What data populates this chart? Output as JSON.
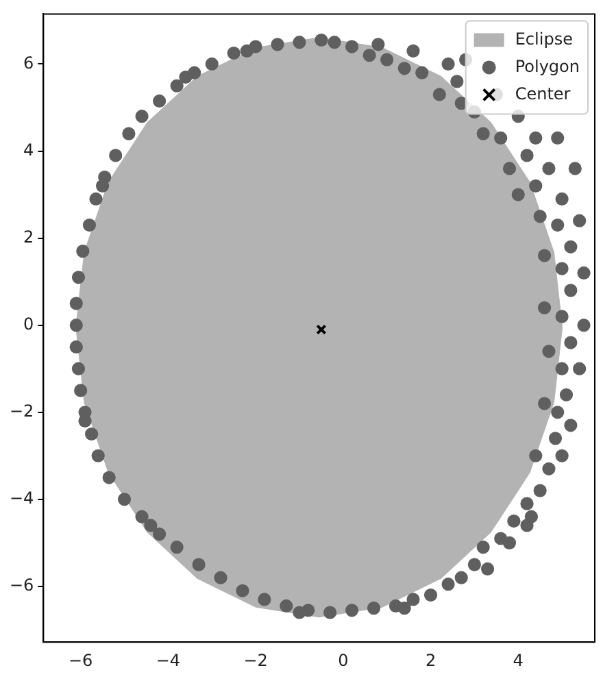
{
  "chart_data": {
    "type": "scatter",
    "xlim": [
      -6.85,
      5.75
    ],
    "ylim": [
      -7.28,
      7.15
    ],
    "xticks": [
      -6,
      -4,
      -2,
      0,
      2,
      4
    ],
    "yticks": [
      -6,
      -4,
      -2,
      0,
      2,
      4,
      6
    ],
    "grid": false,
    "legend": "top right",
    "series": [
      {
        "name": "Eclipse",
        "type": "area",
        "color": "#b3b3b3",
        "x": [
          5.0,
          4.81,
          4.26,
          3.37,
          2.23,
          0.89,
          -0.55,
          -1.99,
          -3.33,
          -4.47,
          -5.36,
          -5.91,
          -6.1,
          -5.91,
          -5.36,
          -4.47,
          -3.33,
          -1.99,
          -0.55,
          0.89,
          2.23,
          3.37,
          4.26,
          4.81,
          5.0
        ],
        "values": [
          -0.05,
          1.67,
          3.28,
          4.65,
          5.71,
          6.37,
          6.6,
          6.37,
          5.71,
          4.65,
          3.28,
          1.67,
          -0.05,
          -1.77,
          -3.38,
          -4.75,
          -5.81,
          -6.47,
          -6.7,
          -6.47,
          -5.81,
          -4.75,
          -3.38,
          -1.77,
          -0.05
        ]
      },
      {
        "name": "Polygon",
        "type": "scatter",
        "marker": "circle",
        "color": "#5f5f5f",
        "x": [
          -0.5,
          -1,
          -1.5,
          -2,
          -2.5,
          -3,
          -3.4,
          -3.8,
          -4.2,
          -4.6,
          -4.9,
          -5.2,
          -5.45,
          -5.65,
          -5.8,
          -5.95,
          -6.05,
          -6.1,
          -6.1,
          -6.1,
          -6.05,
          -6.0,
          -5.9,
          -5.75,
          -5.6,
          -5.35,
          -5.0,
          -4.6,
          -4.2,
          -3.8,
          -3.3,
          -2.8,
          -2.3,
          -1.8,
          -1.3,
          -0.8,
          -0.3,
          0.2,
          0.7,
          1.2,
          1.6,
          2.0,
          2.4,
          2.7,
          3.0,
          3.2,
          3.6,
          3.9,
          4.2,
          4.2,
          4.5,
          4.7,
          4.4,
          4.85,
          4.9,
          4.6,
          5.1,
          5.0,
          4.7,
          5.2,
          5.0,
          4.6,
          5.2,
          5.0,
          4.6,
          5.2,
          4.9,
          4.5,
          5.0,
          4.4,
          4.0,
          4.7,
          4.2,
          3.8,
          4.4,
          3.6,
          3.2,
          4.0,
          3.0,
          2.7,
          3.5,
          2.6,
          2.2,
          1.8,
          1.4,
          2.4,
          1.0,
          0.6,
          1.6,
          0.2,
          0.8,
          -0.2,
          2.8,
          4.9,
          5.3,
          5.4,
          5.5,
          5.5,
          5.4,
          5.2,
          5.0,
          4.3,
          3.8,
          3.3,
          -3.6,
          -2.2,
          -5.5,
          -5.9,
          -4.4,
          -1.0,
          1.4
        ],
        "values": [
          6.55,
          6.5,
          6.45,
          6.4,
          6.25,
          6.0,
          5.8,
          5.5,
          5.15,
          4.8,
          4.4,
          3.9,
          3.4,
          2.9,
          2.3,
          1.7,
          1.1,
          0.5,
          0,
          -0.5,
          -1.0,
          -1.5,
          -2.0,
          -2.5,
          -3.0,
          -3.5,
          -4.0,
          -4.4,
          -4.8,
          -5.1,
          -5.5,
          -5.8,
          -6.1,
          -6.3,
          -6.45,
          -6.55,
          -6.6,
          -6.55,
          -6.5,
          -6.45,
          -6.3,
          -6.2,
          -5.95,
          -5.8,
          -5.5,
          -5.1,
          -4.9,
          -4.5,
          -4.6,
          -4.1,
          -3.8,
          -3.3,
          -3.0,
          -2.6,
          -2.0,
          -1.8,
          -1.6,
          -1.0,
          -0.6,
          -0.4,
          0.2,
          0.4,
          0.8,
          1.3,
          1.6,
          1.8,
          2.3,
          2.5,
          2.9,
          3.2,
          3.0,
          3.6,
          3.9,
          3.6,
          4.3,
          4.3,
          4.4,
          4.8,
          4.9,
          5.1,
          5.3,
          5.6,
          5.3,
          5.8,
          5.9,
          6.0,
          6.1,
          6.2,
          6.3,
          6.4,
          6.45,
          6.5,
          6.1,
          4.3,
          3.6,
          2.4,
          1.2,
          0.0,
          -1.0,
          -2.3,
          -3.0,
          -4.4,
          -5.0,
          -5.6,
          5.7,
          6.3,
          3.2,
          -2.2,
          -4.6,
          -6.6,
          -6.5
        ]
      },
      {
        "name": "Center",
        "type": "scatter",
        "marker": "cross",
        "color": "#000000",
        "x": [
          -0.5
        ],
        "values": [
          -0.1
        ]
      }
    ]
  }
}
